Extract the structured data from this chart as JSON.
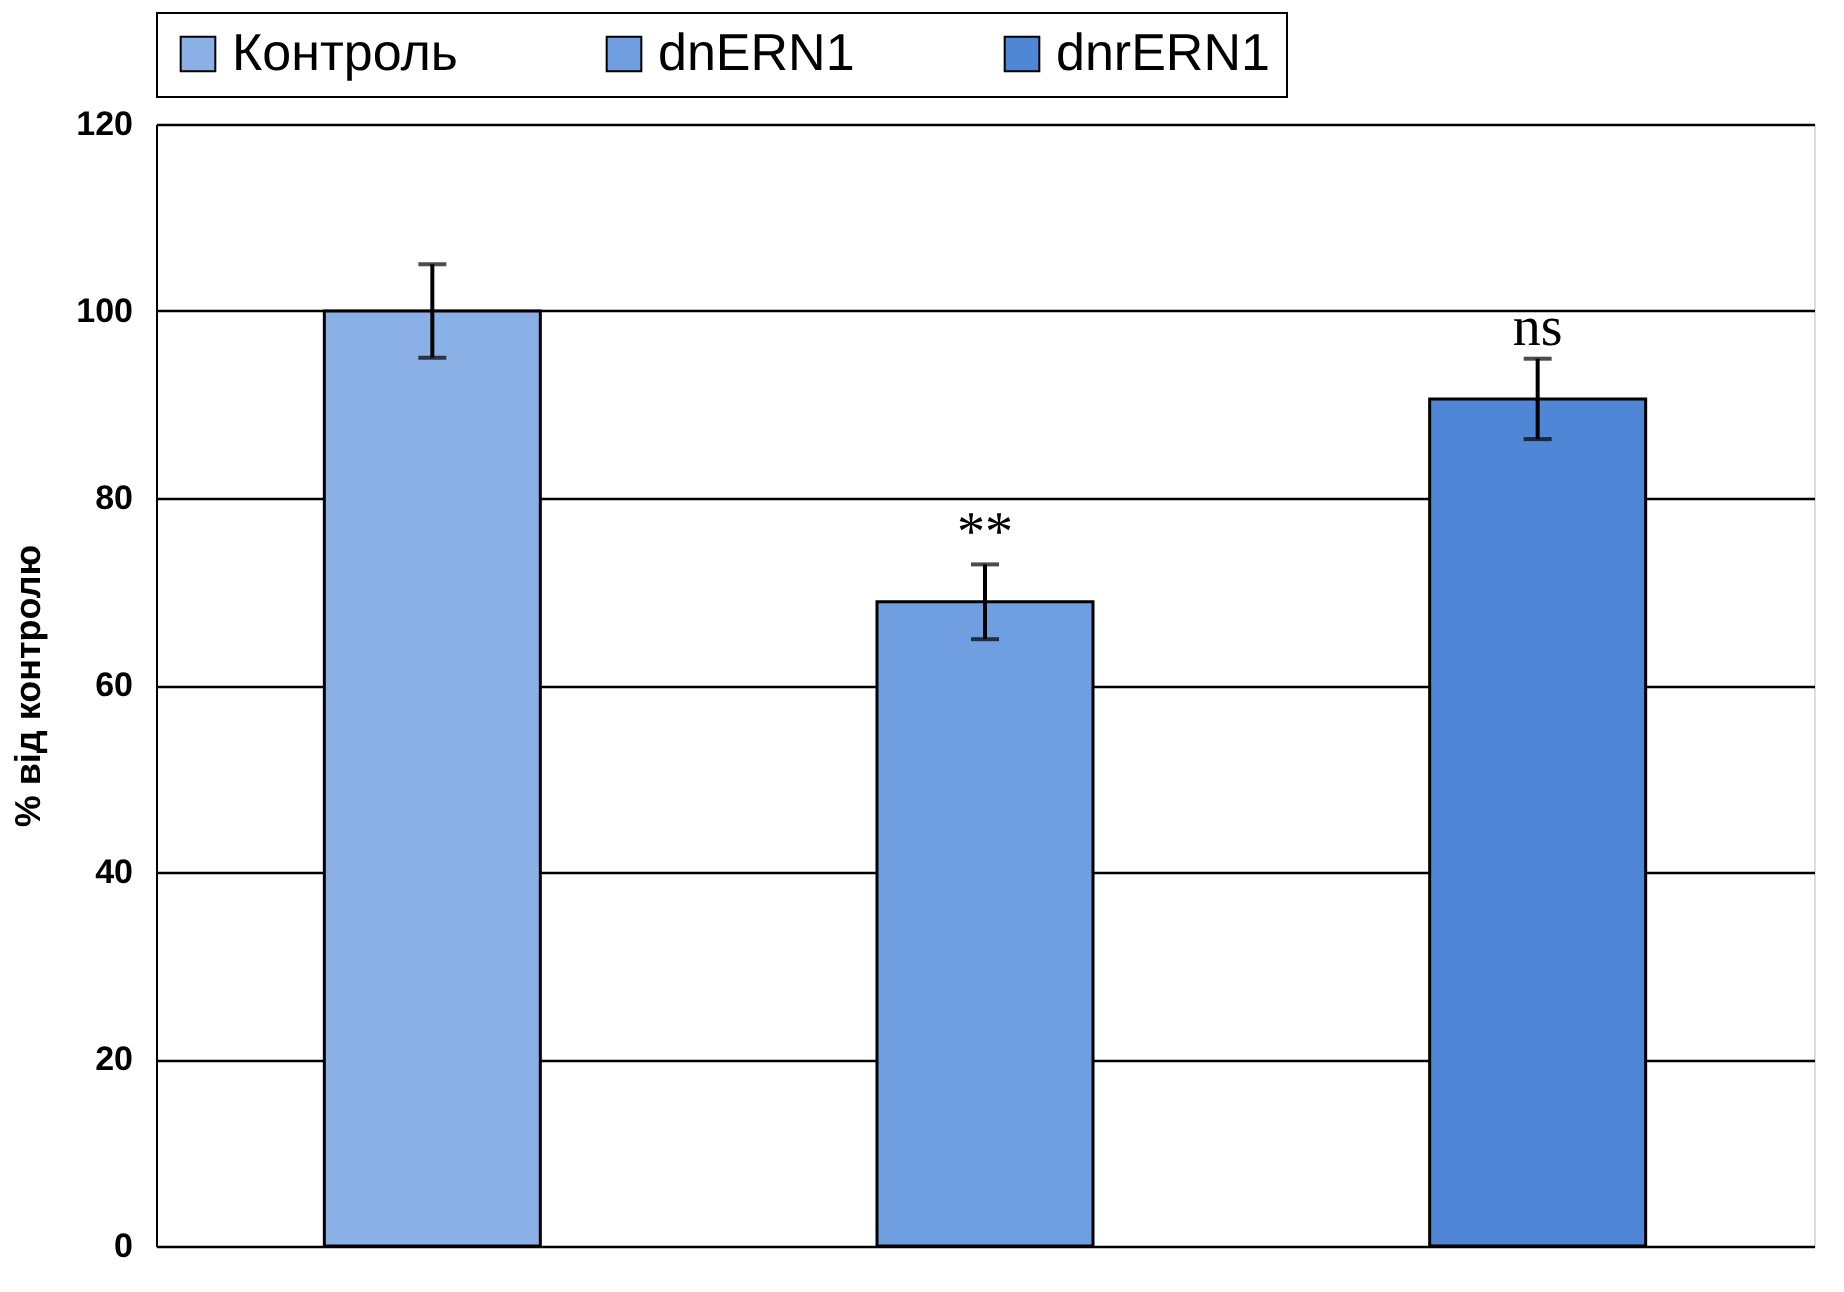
{
  "chart_data": {
    "type": "bar",
    "ylabel": "% від контролю",
    "categories": [
      null,
      null,
      null
    ],
    "series": [
      {
        "name": "Контроль",
        "color": "#8ab0e6",
        "values": [
          100,
          null,
          null
        ],
        "errors": [
          5,
          null,
          null
        ]
      },
      {
        "name": "dnERN1",
        "color": "#6f9fe0",
        "values": [
          null,
          68.9,
          null
        ],
        "errors": [
          null,
          4,
          null
        ],
        "value_labels": [
          null,
          "**",
          null
        ]
      },
      {
        "name": "dnrERN1",
        "color": "#4f86d6",
        "values": [
          null,
          null,
          90.6
        ],
        "errors": [
          null,
          null,
          4.3
        ],
        "value_labels": [
          null,
          null,
          "ns"
        ]
      }
    ],
    "ylim": [
      0,
      120
    ],
    "yticks": [
      0,
      20,
      40,
      60,
      80,
      100,
      120
    ],
    "grid": "y",
    "legend": "top",
    "tick_labels": "y"
  }
}
